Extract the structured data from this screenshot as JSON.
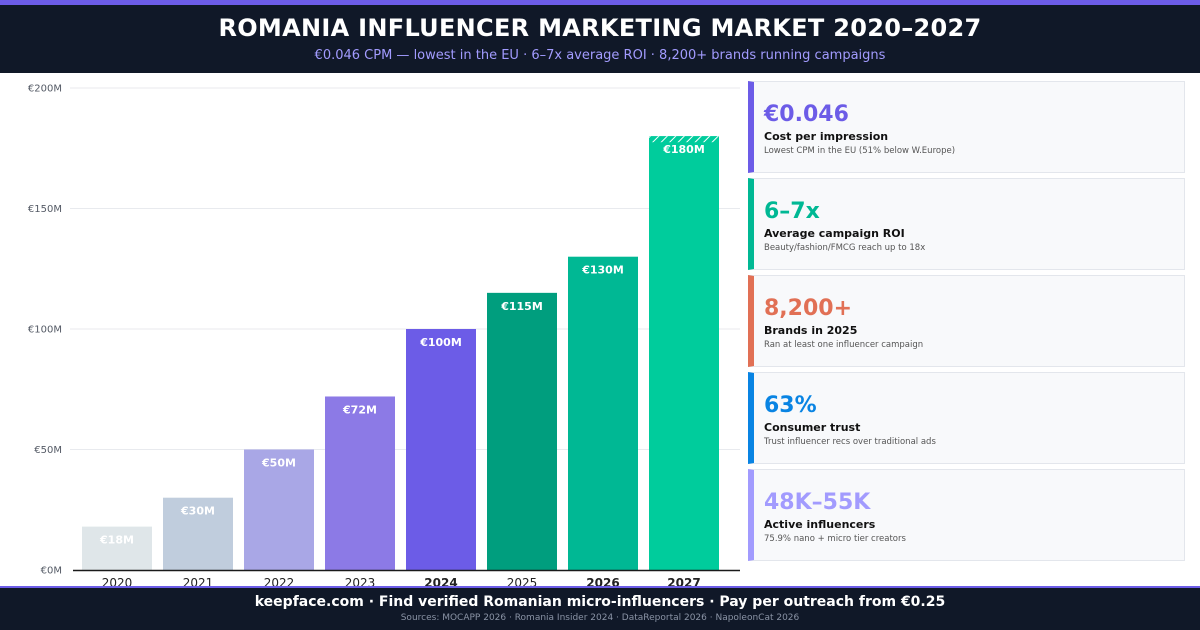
{
  "header": {
    "title": "ROMANIA INFLUENCER MARKETING MARKET 2020–2027",
    "subtitle": "€0.046 CPM — lowest in the EU  ·  6–7x average ROI  ·  8,200+ brands running campaigns"
  },
  "chart_data": {
    "type": "bar",
    "categories": [
      "2020",
      "2021",
      "2022",
      "2023",
      "2024",
      "2025",
      "2026",
      "2027"
    ],
    "values": [
      18,
      30,
      50,
      72,
      100,
      115,
      130,
      180
    ],
    "value_labels": [
      "€18M",
      "€30M",
      "€50M",
      "€72M",
      "€100M",
      "€115M",
      "€130M",
      "€180M"
    ],
    "y_ticks": [
      0,
      50,
      100,
      150,
      200
    ],
    "y_tick_labels": [
      "€0M",
      "€50M",
      "€100M",
      "€150M",
      "€200M"
    ],
    "ylim": [
      0,
      200
    ],
    "grid": true,
    "title": "",
    "xlabel": "",
    "ylabel": "",
    "bar_colors": [
      "#dfe6e9",
      "#c0cddd",
      "#a9a7e6",
      "#8c7ae6",
      "#6c5ce7",
      "#009e7e",
      "#00b894",
      "#00cc9c"
    ],
    "highlight_colors": {
      "2024": "#111111",
      "2026": "#6c5ce7",
      "2027": "#111111"
    },
    "hatched_top": "2027"
  },
  "stats": [
    {
      "value": "€0.046",
      "label": "Cost per impression",
      "desc": "Lowest CPM in the EU (51% below W.Europe)",
      "color": "#6c5ce7"
    },
    {
      "value": "6–7x",
      "label": "Average campaign ROI",
      "desc": "Beauty/fashion/FMCG reach up to 18x",
      "color": "#00b894"
    },
    {
      "value": "8,200+",
      "label": "Brands in 2025",
      "desc": "Ran at least one influencer campaign",
      "color": "#e17055"
    },
    {
      "value": "63%",
      "label": "Consumer trust",
      "desc": "Trust influencer recs over traditional ads",
      "color": "#0984e3"
    },
    {
      "value": "48K–55K",
      "label": "Active influencers",
      "desc": "75.9% nano + micro tier creators",
      "color": "#a29bfe"
    }
  ],
  "footer": {
    "main": "keepface.com  ·  Find verified Romanian micro-influencers  ·  Pay per outreach from €0.25",
    "sources": "Sources: MOCAPP 2026  ·  Romania Insider 2024  ·  DataReportal 2026  ·  NapoleonCat 2026"
  }
}
